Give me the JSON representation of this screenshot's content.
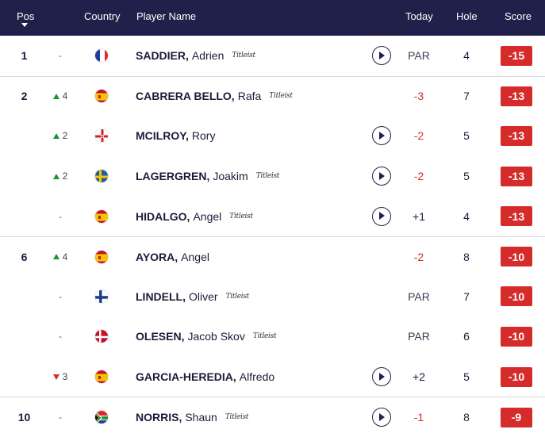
{
  "header": {
    "pos": "Pos",
    "country": "Country",
    "player": "Player Name",
    "today": "Today",
    "hole": "Hole",
    "score": "Score"
  },
  "brand_label": "Titleist",
  "rows": [
    {
      "pos": "1",
      "movement": "-",
      "move_dir": "none",
      "country": "FRA",
      "last": "SADDIER,",
      "first": "Adrien",
      "titleist": true,
      "play": true,
      "today": "PAR",
      "hole": "4",
      "score": "-15"
    },
    {
      "pos": "2",
      "movement": "4",
      "move_dir": "up",
      "country": "ESP",
      "last": "CABRERA BELLO,",
      "first": "Rafa",
      "titleist": true,
      "play": false,
      "today": "-3",
      "hole": "7",
      "score": "-13"
    },
    {
      "pos": "",
      "movement": "2",
      "move_dir": "up",
      "country": "NIR",
      "last": "MCILROY,",
      "first": "Rory",
      "titleist": false,
      "play": true,
      "today": "-2",
      "hole": "5",
      "score": "-13"
    },
    {
      "pos": "",
      "movement": "2",
      "move_dir": "up",
      "country": "SWE",
      "last": "LAGERGREN,",
      "first": "Joakim",
      "titleist": true,
      "play": true,
      "today": "-2",
      "hole": "5",
      "score": "-13"
    },
    {
      "pos": "",
      "movement": "-",
      "move_dir": "none",
      "country": "ESP",
      "last": "HIDALGO,",
      "first": "Angel",
      "titleist": true,
      "play": true,
      "today": "+1",
      "hole": "4",
      "score": "-13"
    },
    {
      "pos": "6",
      "movement": "4",
      "move_dir": "up",
      "country": "ESP",
      "last": "AYORA,",
      "first": "Angel",
      "titleist": false,
      "play": false,
      "today": "-2",
      "hole": "8",
      "score": "-10"
    },
    {
      "pos": "",
      "movement": "-",
      "move_dir": "none",
      "country": "FIN",
      "last": "LINDELL,",
      "first": "Oliver",
      "titleist": true,
      "play": false,
      "today": "PAR",
      "hole": "7",
      "score": "-10"
    },
    {
      "pos": "",
      "movement": "-",
      "move_dir": "none",
      "country": "DEN",
      "last": "OLESEN,",
      "first": "Jacob Skov",
      "titleist": true,
      "play": false,
      "today": "PAR",
      "hole": "6",
      "score": "-10"
    },
    {
      "pos": "",
      "movement": "3",
      "move_dir": "down",
      "country": "ESP",
      "last": "GARCIA-HEREDIA,",
      "first": "Alfredo",
      "titleist": false,
      "play": true,
      "today": "+2",
      "hole": "5",
      "score": "-10"
    },
    {
      "pos": "10",
      "movement": "-",
      "move_dir": "none",
      "country": "RSA",
      "last": "NORRIS,",
      "first": "Shaun",
      "titleist": true,
      "play": true,
      "today": "-1",
      "hole": "8",
      "score": "-9"
    }
  ],
  "colors": {
    "header_bg": "#20204a",
    "score_badge": "#d62b2b",
    "negative_today": "#d62b2b",
    "up_arrow": "#1e8f3a",
    "down_arrow": "#d62b2b"
  },
  "icons": {
    "play": "play-circle-icon",
    "sort": "sort-desc-icon",
    "flag": "country-flag-icon"
  }
}
